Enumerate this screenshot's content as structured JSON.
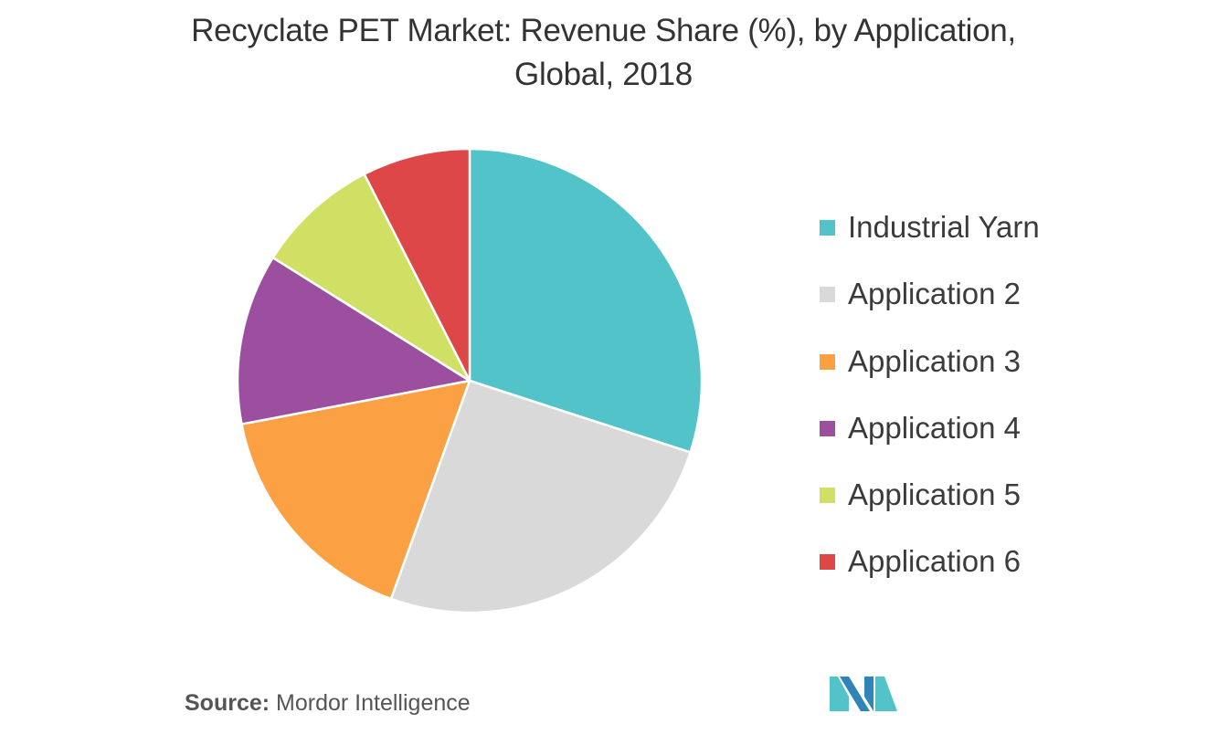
{
  "chart_data": {
    "type": "pie",
    "title_lines": [
      "Recyclate PET Market: Revenue Share (%), by Application,",
      "Global, 2018"
    ],
    "categories": [
      "Industrial Yarn",
      "Application 2",
      "Application 3",
      "Application 4",
      "Application 5",
      "Application 6"
    ],
    "values": [
      30.0,
      25.5,
      16.5,
      11.9,
      8.6,
      7.5
    ],
    "colors": [
      "#52c3c8",
      "#d9d9d9",
      "#fba043",
      "#9c4f9f",
      "#d0e065",
      "#dd4747"
    ],
    "start_angle": "12 o'clock",
    "direction": "clockwise",
    "legend_position": "right"
  },
  "source": {
    "label": "Source:",
    "text": " Mordor Intelligence"
  },
  "logo": {
    "icon": "mordor-intelligence-logo",
    "colors": [
      "#2f84b8",
      "#52c3c8"
    ]
  }
}
